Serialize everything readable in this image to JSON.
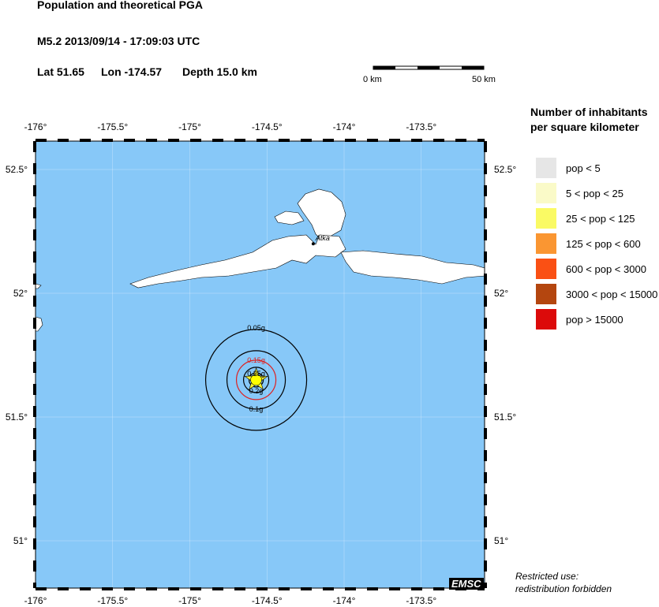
{
  "header": {
    "title": "Population and theoretical PGA",
    "event": "M5.2  2013/09/14 - 17:09:03 UTC",
    "lat": "Lat 51.65",
    "lon": "Lon -174.57",
    "depth": "Depth  15.0 km"
  },
  "scalebar": {
    "start": "0 km",
    "end": "50 km"
  },
  "map": {
    "lon_ticks": [
      "-176°",
      "-175.5°",
      "-175°",
      "-174.5°",
      "-174°",
      "-173.5°"
    ],
    "lat_ticks": [
      "52.5°",
      "52°",
      "51.5°",
      "51°"
    ],
    "epicenter": {
      "lat": 51.65,
      "lon": -174.57
    },
    "town": {
      "name": "Atka",
      "lat": 52.2,
      "lon": -174.2
    },
    "contours": [
      {
        "label": "0.05g",
        "color": "#000000"
      },
      {
        "label": "0.1g",
        "color": "#000000"
      },
      {
        "label": "0.15g",
        "color": "#dd2222"
      },
      {
        "label": "0.2g",
        "color": "#000000"
      },
      {
        "label": "0.25g",
        "color": "#000000"
      }
    ],
    "ocean_color": "#87c8f8",
    "land_color": "#ffffff",
    "logo": "EMSC"
  },
  "legend": {
    "title_line1": "Number of inhabitants",
    "title_line2": "per square kilometer",
    "items": [
      {
        "label": "pop < 5",
        "color": "#e6e6e6"
      },
      {
        "label": "5 < pop < 25",
        "color": "#fafac8"
      },
      {
        "label": "25 < pop < 125",
        "color": "#fafa64"
      },
      {
        "label": "125 < pop < 600",
        "color": "#fa9632"
      },
      {
        "label": "600 < pop < 3000",
        "color": "#fa5014"
      },
      {
        "label": "3000 < pop < 15000",
        "color": "#b4460f"
      },
      {
        "label": "pop > 15000",
        "color": "#dc0a0a"
      }
    ]
  },
  "notice": {
    "line1": "Restricted use:",
    "line2": "redistribution forbidden"
  }
}
